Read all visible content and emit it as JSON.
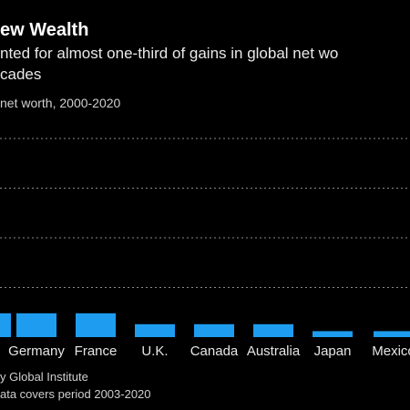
{
  "header": {
    "title": "ew Wealth",
    "subtitle_line1": "nted for almost one-third of gains in global net wo",
    "subtitle_line2": "cades"
  },
  "chart_data": {
    "type": "bar",
    "ylabel": "net worth, 2000-2020",
    "categories": [
      "",
      "Germany",
      "France",
      "U.K.",
      "Canada",
      "Australia",
      "Japan",
      "Mexico"
    ],
    "values": [
      4.8,
      4.8,
      4.8,
      2.6,
      2.6,
      2.6,
      1.2,
      1.2
    ],
    "ylim": [
      0,
      40
    ],
    "yticks": [
      10,
      20,
      30,
      40
    ],
    "grid": true,
    "colors": {
      "bar": "#1e9cf0",
      "grid": "#8a8a8a"
    }
  },
  "footer": {
    "source": "y Global Institute",
    "note": "ata covers period 2003-2020"
  }
}
